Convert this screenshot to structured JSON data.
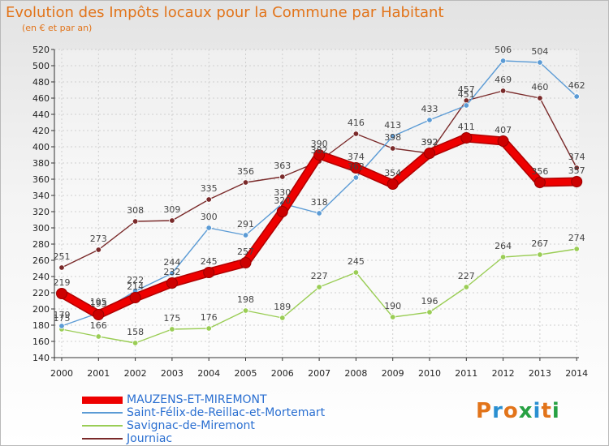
{
  "title": "Evolution des Impôts locaux pour la Commune par Habitant",
  "subtitle": "(en € et par an)",
  "logo": {
    "text": "Proxiti",
    "colors": [
      "#e2741a",
      "#2a8fd1",
      "#e2741a",
      "#27a143",
      "#2a8fd1",
      "#e2741a",
      "#27a143"
    ]
  },
  "chart_data": {
    "type": "line",
    "title": "Evolution des Impôts locaux pour la Commune par Habitant",
    "subtitle": "(en € et par an)",
    "xlabel": "",
    "ylabel": "",
    "x": [
      "2000",
      "2001",
      "2002",
      "2003",
      "2004",
      "2005",
      "2006",
      "2007",
      "2008",
      "2009",
      "2010",
      "2011",
      "2012",
      "2013",
      "2014"
    ],
    "ylim": [
      140,
      520
    ],
    "yticks": [
      140,
      160,
      180,
      200,
      220,
      240,
      260,
      280,
      300,
      320,
      340,
      360,
      380,
      400,
      420,
      440,
      460,
      480,
      500,
      520
    ],
    "grid": true,
    "legend_position": "bottom-left",
    "series": [
      {
        "name": "MAUZENS-ET-MIREMONT",
        "color": "#ee0000",
        "values": [
          219,
          193,
          214,
          232,
          245,
          257,
          320,
          390,
          374,
          354,
          392,
          411,
          407,
          356,
          357
        ]
      },
      {
        "name": "Saint-Félix-de-Reillac-et-Mortemart",
        "color": "#5b9bd5",
        "values": [
          179,
          195,
          222,
          244,
          300,
          291,
          330,
          318,
          362,
          413,
          433,
          451,
          506,
          504,
          462
        ]
      },
      {
        "name": "Savignac-de-Miremont",
        "color": "#9acd55",
        "values": [
          175,
          166,
          158,
          175,
          176,
          198,
          189,
          227,
          245,
          190,
          196,
          227,
          264,
          267,
          274
        ]
      },
      {
        "name": "Journiac",
        "color": "#7a2a2a",
        "values": [
          251,
          273,
          308,
          309,
          335,
          356,
          363,
          382,
          416,
          398,
          392,
          457,
          469,
          460,
          374
        ]
      }
    ],
    "data_labels": [
      [
        219,
        193,
        214,
        232,
        245,
        257,
        320,
        390,
        374,
        354,
        392,
        411,
        407,
        356,
        357
      ],
      [
        179,
        195,
        222,
        244,
        300,
        291,
        330,
        318,
        362,
        413,
        433,
        451,
        506,
        504,
        462
      ],
      [
        175,
        166,
        158,
        175,
        176,
        198,
        189,
        227,
        245,
        190,
        196,
        227,
        264,
        267,
        274
      ],
      [
        251,
        273,
        308,
        309,
        335,
        356,
        363,
        382,
        416,
        398,
        392,
        457,
        469,
        460,
        374
      ]
    ]
  }
}
